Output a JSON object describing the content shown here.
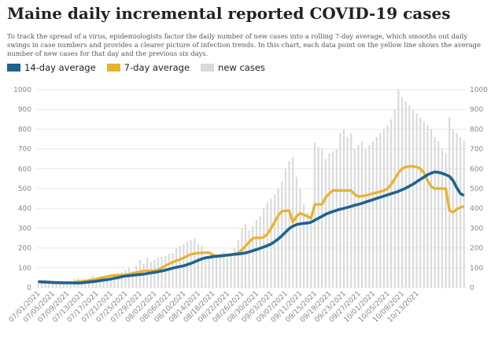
{
  "title": "Maine daily incremental reported COVID-19 cases",
  "subtitle": "To track the spread of a virus, epidemiologists factor the daily number of new cases into a rolling 7-day average, which smooths out daily swings in case numbers and provides a clearer picture of infection trends. In this chart, each data point on the yellow line shows the average number of new cases for that day and the previous six days.",
  "colors": {
    "avg14": "#1f6391",
    "avg7": "#e8b230",
    "bars": "#d9d9d9",
    "grid": "#e8e8e8"
  },
  "chart_data": {
    "type": "bar+line",
    "start_date": "07/01/2021",
    "x_tick_labels": [
      "07/01/2021",
      "07/05/2021",
      "07/09/2021",
      "07/13/2021",
      "07/17/2021",
      "07/21/2021",
      "07/25/2021",
      "07/29/2021",
      "08/02/2021",
      "08/06/2021",
      "08/10/2021",
      "08/14/2021",
      "08/18/2021",
      "08/22/2021",
      "08/26/2021",
      "08/30/2021",
      "09/03/2021",
      "09/07/2021",
      "09/11/2021",
      "09/15/2021",
      "09/19/2021",
      "09/23/2021",
      "09/27/2021",
      "10/01/2021",
      "10/05/2021",
      "10/09/2021",
      "10/13/2021"
    ],
    "y_ticks": [
      "0",
      "100",
      "200",
      "300",
      "400",
      "500",
      "600",
      "700",
      "800",
      "900",
      "1000"
    ],
    "ylim": [
      0,
      1000
    ],
    "grid": true,
    "legend_position": "top-left",
    "series": [
      {
        "name": "14-day average",
        "kind": "line",
        "values": [
          30,
          29,
          28,
          27,
          26,
          25,
          25,
          24,
          24,
          24,
          23,
          23,
          24,
          26,
          28,
          30,
          32,
          35,
          38,
          40,
          43,
          47,
          50,
          55,
          58,
          60,
          62,
          64,
          66,
          68,
          71,
          74,
          77,
          80,
          84,
          88,
          93,
          98,
          102,
          106,
          110,
          116,
          122,
          130,
          138,
          145,
          150,
          153,
          156,
          158,
          160,
          162,
          164,
          166,
          168,
          170,
          172,
          175,
          180,
          186,
          192,
          198,
          205,
          212,
          220,
          232,
          246,
          262,
          280,
          298,
          310,
          318,
          322,
          324,
          326,
          330,
          340,
          350,
          360,
          370,
          378,
          384,
          390,
          396,
          400,
          405,
          410,
          416,
          420,
          426,
          432,
          438,
          444,
          450,
          456,
          462,
          468,
          474,
          480,
          486,
          494,
          502,
          512,
          522,
          534,
          546,
          558,
          570,
          578,
          584,
          582,
          577,
          570,
          562,
          540,
          505,
          475,
          465
        ]
      },
      {
        "name": "7-day average",
        "kind": "line",
        "values": [
          28,
          27,
          26,
          25,
          24,
          23,
          23,
          24,
          24,
          25,
          27,
          30,
          32,
          34,
          37,
          40,
          43,
          48,
          52,
          56,
          60,
          62,
          62,
          63,
          65,
          68,
          72,
          76,
          80,
          84,
          85,
          85,
          86,
          90,
          100,
          110,
          120,
          128,
          136,
          142,
          150,
          160,
          168,
          172,
          174,
          176,
          176,
          176,
          165,
          160,
          158,
          160,
          162,
          166,
          170,
          175,
          190,
          210,
          230,
          248,
          252,
          250,
          255,
          270,
          300,
          330,
          365,
          385,
          388,
          388,
          330,
          360,
          375,
          368,
          360,
          350,
          420,
          420,
          420,
          455,
          475,
          490,
          490,
          490,
          490,
          490,
          490,
          470,
          460,
          462,
          465,
          470,
          475,
          480,
          485,
          490,
          500,
          520,
          550,
          580,
          600,
          610,
          612,
          612,
          610,
          600,
          580,
          540,
          510,
          500,
          500,
          500,
          500,
          390,
          380,
          395,
          405,
          410
        ]
      },
      {
        "name": "new cases",
        "kind": "bar",
        "values": [
          20,
          25,
          40,
          35,
          22,
          18,
          30,
          28,
          25,
          30,
          45,
          50,
          35,
          32,
          45,
          60,
          40,
          35,
          50,
          55,
          45,
          60,
          75,
          80,
          90,
          100,
          85,
          110,
          140,
          120,
          150,
          130,
          140,
          150,
          155,
          160,
          170,
          175,
          200,
          210,
          220,
          230,
          240,
          250,
          220,
          210,
          160,
          150,
          155,
          160,
          170,
          180,
          150,
          165,
          200,
          240,
          300,
          320,
          290,
          310,
          340,
          360,
          400,
          430,
          450,
          470,
          500,
          540,
          600,
          640,
          660,
          560,
          500,
          420,
          380,
          360,
          730,
          710,
          700,
          650,
          680,
          690,
          700,
          780,
          800,
          760,
          780,
          700,
          720,
          740,
          700,
          720,
          740,
          760,
          780,
          800,
          820,
          850,
          900,
          1000,
          960,
          940,
          920,
          900,
          880,
          860,
          840,
          820,
          800,
          760,
          740,
          700,
          680,
          860,
          800,
          780,
          760,
          740
        ]
      }
    ]
  }
}
